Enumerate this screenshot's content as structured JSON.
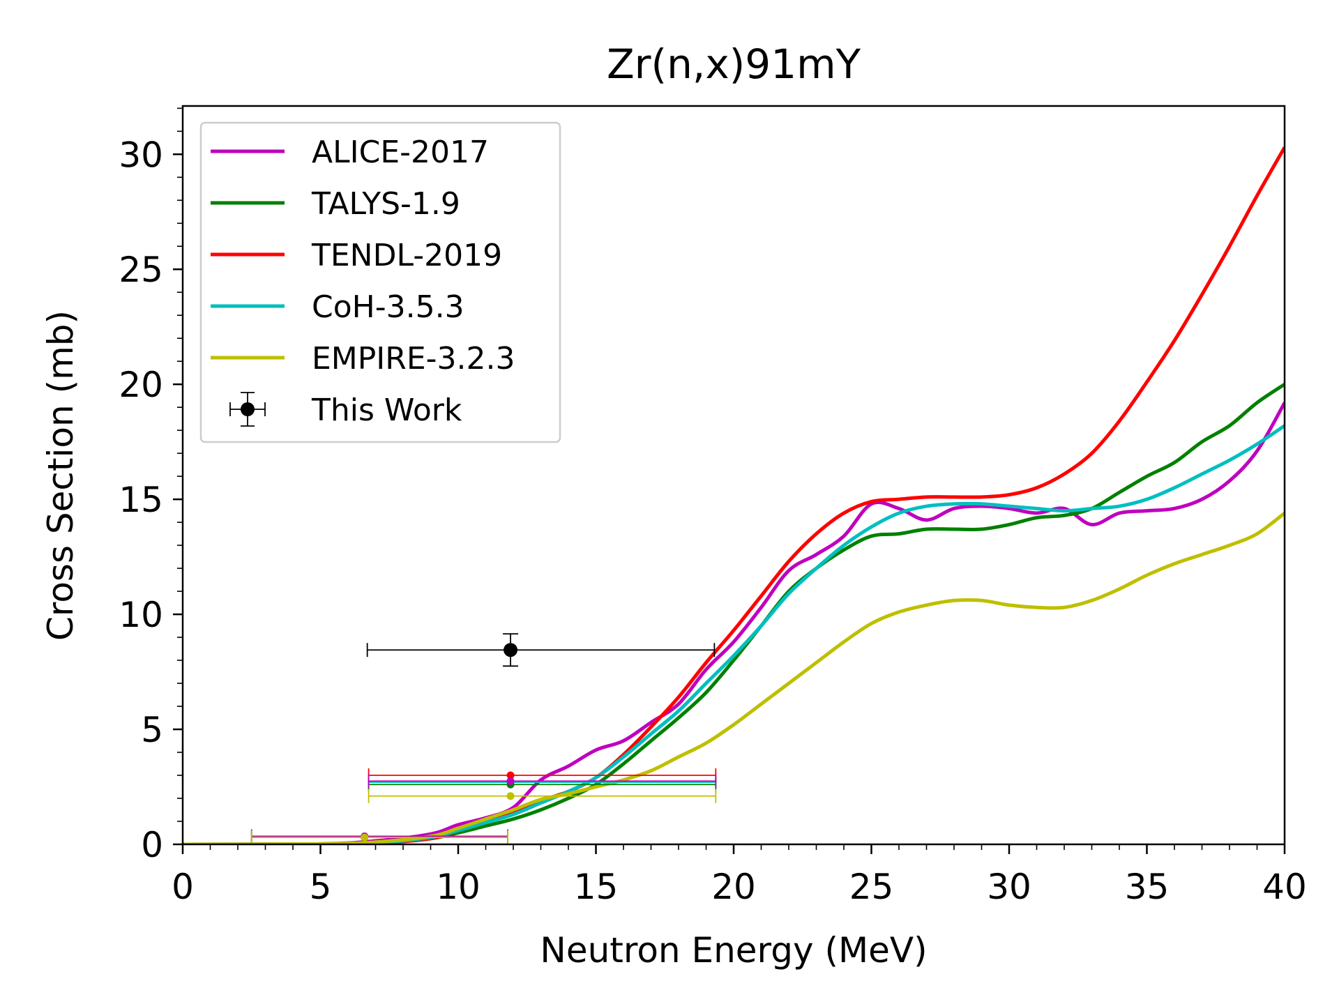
{
  "chart_data": {
    "type": "line",
    "title": "Zr(n,x)91mY",
    "xlabel": "Neutron Energy (MeV)",
    "ylabel": "Cross Section (mb)",
    "xlim": [
      0,
      40
    ],
    "ylim": [
      0,
      32.1
    ],
    "xticks": [
      0,
      5,
      10,
      15,
      20,
      25,
      30,
      35,
      40
    ],
    "yticks": [
      0,
      5,
      10,
      15,
      20,
      25,
      30
    ],
    "xtick_labels": [
      "0",
      "5",
      "10",
      "15",
      "20",
      "25",
      "30",
      "35",
      "40"
    ],
    "ytick_labels": [
      "0",
      "5",
      "10",
      "15",
      "20",
      "25",
      "30"
    ],
    "grid": false,
    "legend_position": "top-left",
    "series": [
      {
        "name": "ALICE-2017",
        "color": "#bf00bf",
        "x": [
          0,
          5,
          7,
          9,
          10,
          11,
          12,
          13,
          14,
          15,
          16,
          17,
          18,
          19,
          20,
          21,
          22,
          23,
          24,
          25,
          26,
          27,
          28,
          29,
          30,
          31,
          32,
          33,
          34,
          35,
          36,
          37,
          38,
          39,
          40
        ],
        "y": [
          0,
          0.02,
          0.15,
          0.45,
          0.85,
          1.15,
          1.6,
          2.8,
          3.4,
          4.1,
          4.5,
          5.3,
          6.1,
          7.6,
          8.8,
          10.3,
          11.9,
          12.6,
          13.4,
          14.8,
          14.6,
          14.1,
          14.6,
          14.7,
          14.6,
          14.4,
          14.6,
          13.9,
          14.4,
          14.5,
          14.6,
          15.0,
          15.8,
          17.1,
          19.2
        ]
      },
      {
        "name": "TALYS-1.9",
        "color": "#008000",
        "x": [
          0,
          5,
          7,
          9,
          10,
          11,
          12,
          13,
          14,
          15,
          16,
          17,
          18,
          19,
          20,
          21,
          22,
          23,
          24,
          25,
          26,
          27,
          28,
          29,
          30,
          31,
          32,
          33,
          34,
          35,
          36,
          37,
          38,
          39,
          40
        ],
        "y": [
          0,
          0.01,
          0.05,
          0.25,
          0.5,
          0.8,
          1.1,
          1.5,
          2.0,
          2.6,
          3.5,
          4.5,
          5.5,
          6.6,
          8.0,
          9.5,
          11.0,
          12.0,
          12.8,
          13.4,
          13.5,
          13.7,
          13.7,
          13.7,
          13.9,
          14.2,
          14.3,
          14.6,
          15.3,
          16.0,
          16.6,
          17.5,
          18.2,
          19.2,
          20.0
        ]
      },
      {
        "name": "TENDL-2019",
        "color": "#ff0000",
        "x": [
          0,
          5,
          7,
          9,
          10,
          11,
          12,
          13,
          14,
          15,
          16,
          17,
          18,
          19,
          20,
          21,
          22,
          23,
          24,
          25,
          26,
          27,
          28,
          29,
          30,
          31,
          32,
          33,
          34,
          35,
          36,
          37,
          38,
          39,
          40
        ],
        "y": [
          0,
          0.01,
          0.05,
          0.25,
          0.6,
          1.0,
          1.4,
          1.9,
          2.3,
          2.9,
          3.9,
          5.1,
          6.4,
          7.9,
          9.3,
          10.8,
          12.3,
          13.5,
          14.4,
          14.9,
          15.0,
          15.1,
          15.1,
          15.1,
          15.2,
          15.5,
          16.1,
          17.0,
          18.4,
          20.1,
          21.9,
          23.9,
          26.0,
          28.2,
          30.3
        ]
      },
      {
        "name": "CoH-3.5.3",
        "color": "#00bfbf",
        "x": [
          0,
          5,
          7,
          9,
          10,
          11,
          12,
          13,
          14,
          15,
          16,
          17,
          18,
          19,
          20,
          21,
          22,
          23,
          24,
          25,
          26,
          27,
          28,
          29,
          30,
          31,
          32,
          33,
          34,
          35,
          36,
          37,
          38,
          39,
          40
        ],
        "y": [
          0,
          0.01,
          0.06,
          0.3,
          0.6,
          0.95,
          1.3,
          1.8,
          2.3,
          2.9,
          3.8,
          4.8,
          5.8,
          7.0,
          8.2,
          9.5,
          10.9,
          12.0,
          13.0,
          13.8,
          14.4,
          14.7,
          14.8,
          14.8,
          14.7,
          14.6,
          14.5,
          14.6,
          14.7,
          15.0,
          15.5,
          16.1,
          16.7,
          17.4,
          18.2
        ]
      },
      {
        "name": "EMPIRE-3.2.3",
        "color": "#bfbf00",
        "x": [
          0,
          5,
          7,
          9,
          10,
          11,
          12,
          13,
          14,
          15,
          16,
          17,
          18,
          19,
          20,
          21,
          22,
          23,
          24,
          25,
          26,
          27,
          28,
          29,
          30,
          31,
          32,
          33,
          34,
          35,
          36,
          37,
          38,
          39,
          40
        ],
        "y": [
          0,
          0.02,
          0.1,
          0.35,
          0.7,
          1.1,
          1.5,
          1.95,
          2.2,
          2.5,
          2.8,
          3.2,
          3.8,
          4.4,
          5.2,
          6.1,
          7.0,
          7.9,
          8.8,
          9.6,
          10.1,
          10.4,
          10.6,
          10.6,
          10.4,
          10.3,
          10.3,
          10.6,
          11.1,
          11.7,
          12.2,
          12.6,
          13.0,
          13.5,
          14.4
        ]
      }
    ],
    "this_work": {
      "name": "This Work",
      "color": "#000000",
      "x": 11.9,
      "y": 8.45,
      "xerr_low": 5.2,
      "xerr_high": 7.4,
      "yerr": 0.7
    },
    "averaged_points": [
      {
        "series": "TENDL-2019",
        "color": "#ff0000",
        "x": 11.9,
        "y": 3.0,
        "xmin": 6.75,
        "xmax": 19.35
      },
      {
        "series": "CoH-3.5.3",
        "color": "#00bfbf",
        "x": 11.9,
        "y": 2.7,
        "xmin": 6.75,
        "xmax": 19.35
      },
      {
        "series": "TALYS-1.9",
        "color": "#008000",
        "x": 11.9,
        "y": 2.6,
        "xmin": 6.75,
        "xmax": 19.35
      },
      {
        "series": "ALICE-2017",
        "color": "#bf00bf",
        "x": 11.9,
        "y": 2.75,
        "xmin": 6.75,
        "xmax": 19.35
      },
      {
        "series": "EMPIRE-3.2.3",
        "color": "#bfbf00",
        "x": 11.9,
        "y": 2.1,
        "xmin": 6.75,
        "xmax": 19.35
      },
      {
        "series": "ALICE-2017",
        "color": "#bf00bf",
        "x": 6.6,
        "y": 0.35,
        "xmin": 2.5,
        "xmax": 11.8
      },
      {
        "series": "TALYS-1.9",
        "color": "#008000",
        "x": 6.6,
        "y": 0.3,
        "xmin": 2.5,
        "xmax": 11.8
      },
      {
        "series": "EMPIRE-3.2.3",
        "color": "#bfbf00",
        "x": 6.6,
        "y": 0.3,
        "xmin": 2.5,
        "xmax": 11.8
      }
    ]
  }
}
